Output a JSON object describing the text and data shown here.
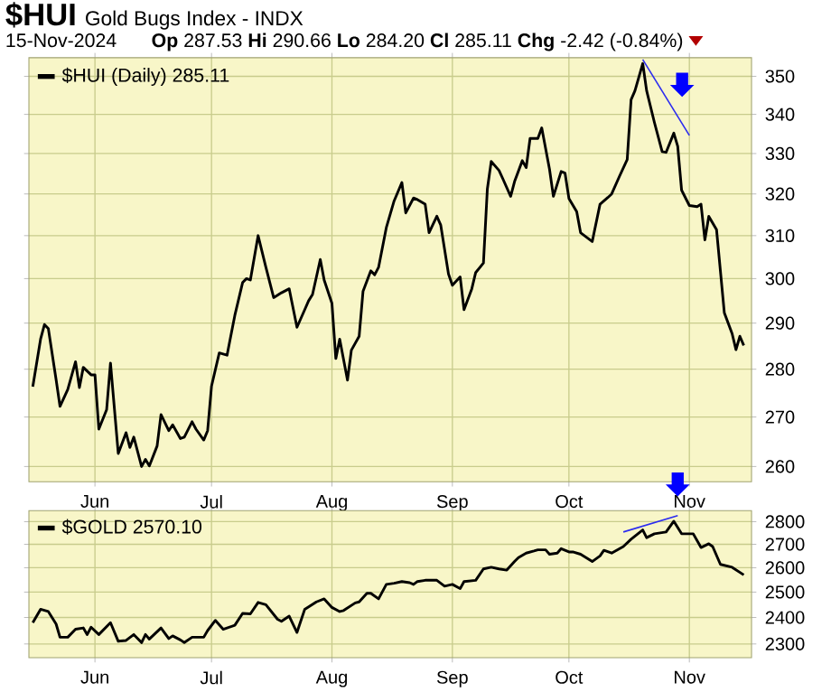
{
  "chart_data": [
    {
      "type": "line",
      "title": "**$HUI**",
      "subtitle": "Gold Bugs Index - INDX",
      "annotations": [
        "15-Nov-2024",
        "**Op** 287.53 **Hi** 290.66 **Lo** 284.20 **Cl** 285.11 **Chg** -2.42 (-0.84%)"
      ],
      "xlim": [
        "2024-05-15",
        "2024-11-17"
      ],
      "xticks": [
        {
          "value": "2024-06-01",
          "label": "Jun"
        },
        {
          "value": "2024-07-01",
          "label": "Jul"
        },
        {
          "value": "2024-08-01",
          "label": "Aug"
        },
        {
          "value": "2024-09-01",
          "label": "Sep"
        },
        {
          "value": "2024-10-01",
          "label": "Oct"
        },
        {
          "value": "2024-11-01",
          "label": "Nov"
        }
      ],
      "ylim": [
        257,
        355
      ],
      "yticks": [
        260,
        270,
        280,
        290,
        300,
        310,
        320,
        330,
        340,
        350
      ],
      "log": "y",
      "grid": true,
      "legend": "top left",
      "series": [
        {
          "name": "$HUI (Daily) 285.11",
          "color": "#000000",
          "x": [
            "2024-05-16",
            "2024-05-18",
            "2024-05-19",
            "2024-05-20",
            "2024-05-22",
            "2024-05-23",
            "2024-05-25",
            "2024-05-27",
            "2024-05-28",
            "2024-05-29",
            "2024-05-31",
            "2024-06-01",
            "2024-06-02",
            "2024-06-04",
            "2024-06-05",
            "2024-06-07",
            "2024-06-09",
            "2024-06-10",
            "2024-06-11",
            "2024-06-13",
            "2024-06-14",
            "2024-06-15",
            "2024-06-17",
            "2024-06-18",
            "2024-06-20",
            "2024-06-21",
            "2024-06-23",
            "2024-06-24",
            "2024-06-26",
            "2024-06-27",
            "2024-06-29",
            "2024-06-30",
            "2024-07-01",
            "2024-07-03",
            "2024-07-05",
            "2024-07-07",
            "2024-07-09",
            "2024-07-10",
            "2024-07-11",
            "2024-07-13",
            "2024-07-15",
            "2024-07-17",
            "2024-07-19",
            "2024-07-21",
            "2024-07-23",
            "2024-07-25",
            "2024-07-26",
            "2024-07-27",
            "2024-07-29",
            "2024-07-30",
            "2024-08-01",
            "2024-08-02",
            "2024-08-03",
            "2024-08-05",
            "2024-08-06",
            "2024-08-08",
            "2024-08-09",
            "2024-08-11",
            "2024-08-12",
            "2024-08-13",
            "2024-08-15",
            "2024-08-17",
            "2024-08-19",
            "2024-08-20",
            "2024-08-22",
            "2024-08-23",
            "2024-08-25",
            "2024-08-26",
            "2024-08-28",
            "2024-08-29",
            "2024-08-31",
            "2024-09-01",
            "2024-09-03",
            "2024-09-04",
            "2024-09-06",
            "2024-09-07",
            "2024-09-09",
            "2024-09-10",
            "2024-09-11",
            "2024-09-13",
            "2024-09-14",
            "2024-09-16",
            "2024-09-17",
            "2024-09-19",
            "2024-09-20",
            "2024-09-21",
            "2024-09-23",
            "2024-09-24",
            "2024-09-26",
            "2024-09-27",
            "2024-09-29",
            "2024-09-30",
            "2024-10-01",
            "2024-10-03",
            "2024-10-04",
            "2024-10-07",
            "2024-10-09",
            "2024-10-11",
            "2024-10-12",
            "2024-10-14",
            "2024-10-16",
            "2024-10-17",
            "2024-10-18",
            "2024-10-20",
            "2024-10-21",
            "2024-10-23",
            "2024-10-25",
            "2024-10-26",
            "2024-10-28",
            "2024-10-29",
            "2024-10-30",
            "2024-11-01",
            "2024-11-03",
            "2024-11-04",
            "2024-11-05",
            "2024-11-06",
            "2024-11-08",
            "2024-11-10",
            "2024-11-12",
            "2024-11-13",
            "2024-11-14",
            "2024-11-15"
          ],
          "values": [
            276.3,
            286.5,
            289.7,
            288.8,
            277.8,
            272.2,
            275.7,
            281.6,
            276.1,
            280.4,
            278.8,
            278.8,
            267.5,
            271.5,
            281.3,
            262.6,
            266.8,
            263.8,
            265.9,
            260,
            261.4,
            260.1,
            264.1,
            270.5,
            267.2,
            268.4,
            265.6,
            265.9,
            269.0,
            267.5,
            265.3,
            267.2,
            276.4,
            283.5,
            283.0,
            291.7,
            299.1,
            300,
            299.7,
            310,
            302.6,
            295.7,
            296.8,
            297.7,
            289.1,
            293.0,
            295.0,
            296.4,
            304.4,
            299.7,
            294.4,
            282.3,
            286.5,
            277.7,
            284.1,
            287.1,
            297.1,
            301.8,
            300.9,
            302.6,
            311.9,
            318.3,
            322.8,
            315.4,
            319.0,
            318.6,
            317.5,
            310.7,
            314.6,
            312.5,
            301.1,
            298.5,
            300.4,
            293.0,
            297.7,
            301.4,
            303.6,
            321.2,
            328.0,
            325.8,
            323.7,
            319.4,
            323.0,
            328.2,
            326.5,
            333.8,
            333.8,
            336.5,
            326.1,
            319.4,
            325.5,
            325.1,
            318.9,
            315.7,
            310.7,
            308.6,
            317.5,
            319.1,
            320,
            324.3,
            328.5,
            343.8,
            346.2,
            353.4,
            346.2,
            337.9,
            330.5,
            330.3,
            335.2,
            331.8,
            320.9,
            317.2,
            316.9,
            317.5,
            309.0,
            314.6,
            311.4,
            292.3,
            287.7,
            284.2,
            287.1,
            285.1
          ]
        },
        {
          "color": "#2b2bf0",
          "x": [
            "2024-10-20",
            "2024-11-01"
          ],
          "values": [
            354.5,
            334.6
          ]
        }
      ]
    },
    {
      "type": "line",
      "xlim": [
        "2024-05-15",
        "2024-11-17"
      ],
      "xticks": [
        {
          "value": "2024-06-01",
          "label": "Jun"
        },
        {
          "value": "2024-07-01",
          "label": "Jul"
        },
        {
          "value": "2024-08-01",
          "label": "Aug"
        },
        {
          "value": "2024-09-01",
          "label": "Sep"
        },
        {
          "value": "2024-10-01",
          "label": "Oct"
        },
        {
          "value": "2024-11-01",
          "label": "Nov"
        }
      ],
      "ylim": [
        2250,
        2850
      ],
      "yticks": [
        2300,
        2400,
        2500,
        2600,
        2700,
        2800
      ],
      "log": "y",
      "grid": true,
      "legend": "top left",
      "series": [
        {
          "name": "$GOLD 2570.10",
          "color": "#000000",
          "x": [
            "2024-05-16",
            "2024-05-18",
            "2024-05-20",
            "2024-05-22",
            "2024-05-23",
            "2024-05-25",
            "2024-05-27",
            "2024-05-29",
            "2024-05-30",
            "2024-05-31",
            "2024-06-02",
            "2024-06-05",
            "2024-06-07",
            "2024-06-09",
            "2024-06-11",
            "2024-06-13",
            "2024-06-14",
            "2024-06-15",
            "2024-06-18",
            "2024-06-20",
            "2024-06-21",
            "2024-06-23",
            "2024-06-24",
            "2024-06-26",
            "2024-06-29",
            "2024-06-30",
            "2024-07-02",
            "2024-07-04",
            "2024-07-07",
            "2024-07-09",
            "2024-07-11",
            "2024-07-13",
            "2024-07-15",
            "2024-07-18",
            "2024-07-19",
            "2024-07-21",
            "2024-07-23",
            "2024-07-25",
            "2024-07-28",
            "2024-07-30",
            "2024-08-01",
            "2024-08-03",
            "2024-08-04",
            "2024-08-07",
            "2024-08-08",
            "2024-08-10",
            "2024-08-11",
            "2024-08-13",
            "2024-08-15",
            "2024-08-17",
            "2024-08-19",
            "2024-08-21",
            "2024-08-22",
            "2024-08-23",
            "2024-08-25",
            "2024-08-26",
            "2024-08-28",
            "2024-08-30",
            "2024-09-01",
            "2024-09-03",
            "2024-09-04",
            "2024-09-07",
            "2024-09-09",
            "2024-09-11",
            "2024-09-13",
            "2024-09-15",
            "2024-09-17",
            "2024-09-18",
            "2024-09-20",
            "2024-09-22",
            "2024-09-23",
            "2024-09-25",
            "2024-09-26",
            "2024-09-28",
            "2024-09-29",
            "2024-10-01",
            "2024-10-02",
            "2024-10-04",
            "2024-10-07",
            "2024-10-09",
            "2024-10-10",
            "2024-10-12",
            "2024-10-15",
            "2024-10-17",
            "2024-10-20",
            "2024-10-21",
            "2024-10-23",
            "2024-10-26",
            "2024-10-28",
            "2024-10-30",
            "2024-11-02",
            "2024-11-04",
            "2024-11-06",
            "2024-11-07",
            "2024-11-09",
            "2024-11-12",
            "2024-11-15"
          ],
          "values": [
            2380,
            2432,
            2423,
            2375,
            2325,
            2325,
            2355,
            2360,
            2335,
            2363,
            2335,
            2380,
            2310,
            2313,
            2335,
            2305,
            2335,
            2318,
            2360,
            2320,
            2330,
            2315,
            2305,
            2325,
            2325,
            2350,
            2389,
            2355,
            2370,
            2416,
            2414,
            2459,
            2450,
            2393,
            2385,
            2405,
            2343,
            2432,
            2461,
            2473,
            2439,
            2423,
            2427,
            2457,
            2461,
            2495,
            2495,
            2473,
            2531,
            2536,
            2543,
            2538,
            2531,
            2543,
            2548,
            2548,
            2548,
            2524,
            2531,
            2514,
            2543,
            2548,
            2595,
            2602,
            2595,
            2590,
            2626,
            2643,
            2662,
            2671,
            2676,
            2676,
            2657,
            2662,
            2681,
            2667,
            2667,
            2657,
            2626,
            2650,
            2674,
            2662,
            2690,
            2722,
            2763,
            2729,
            2746,
            2754,
            2802,
            2746,
            2746,
            2686,
            2702,
            2690,
            2614,
            2602,
            2570.1
          ]
        },
        {
          "color": "#2b2bf0",
          "x": [
            "2024-10-15",
            "2024-10-29"
          ],
          "values": [
            2754,
            2827
          ]
        }
      ]
    }
  ]
}
